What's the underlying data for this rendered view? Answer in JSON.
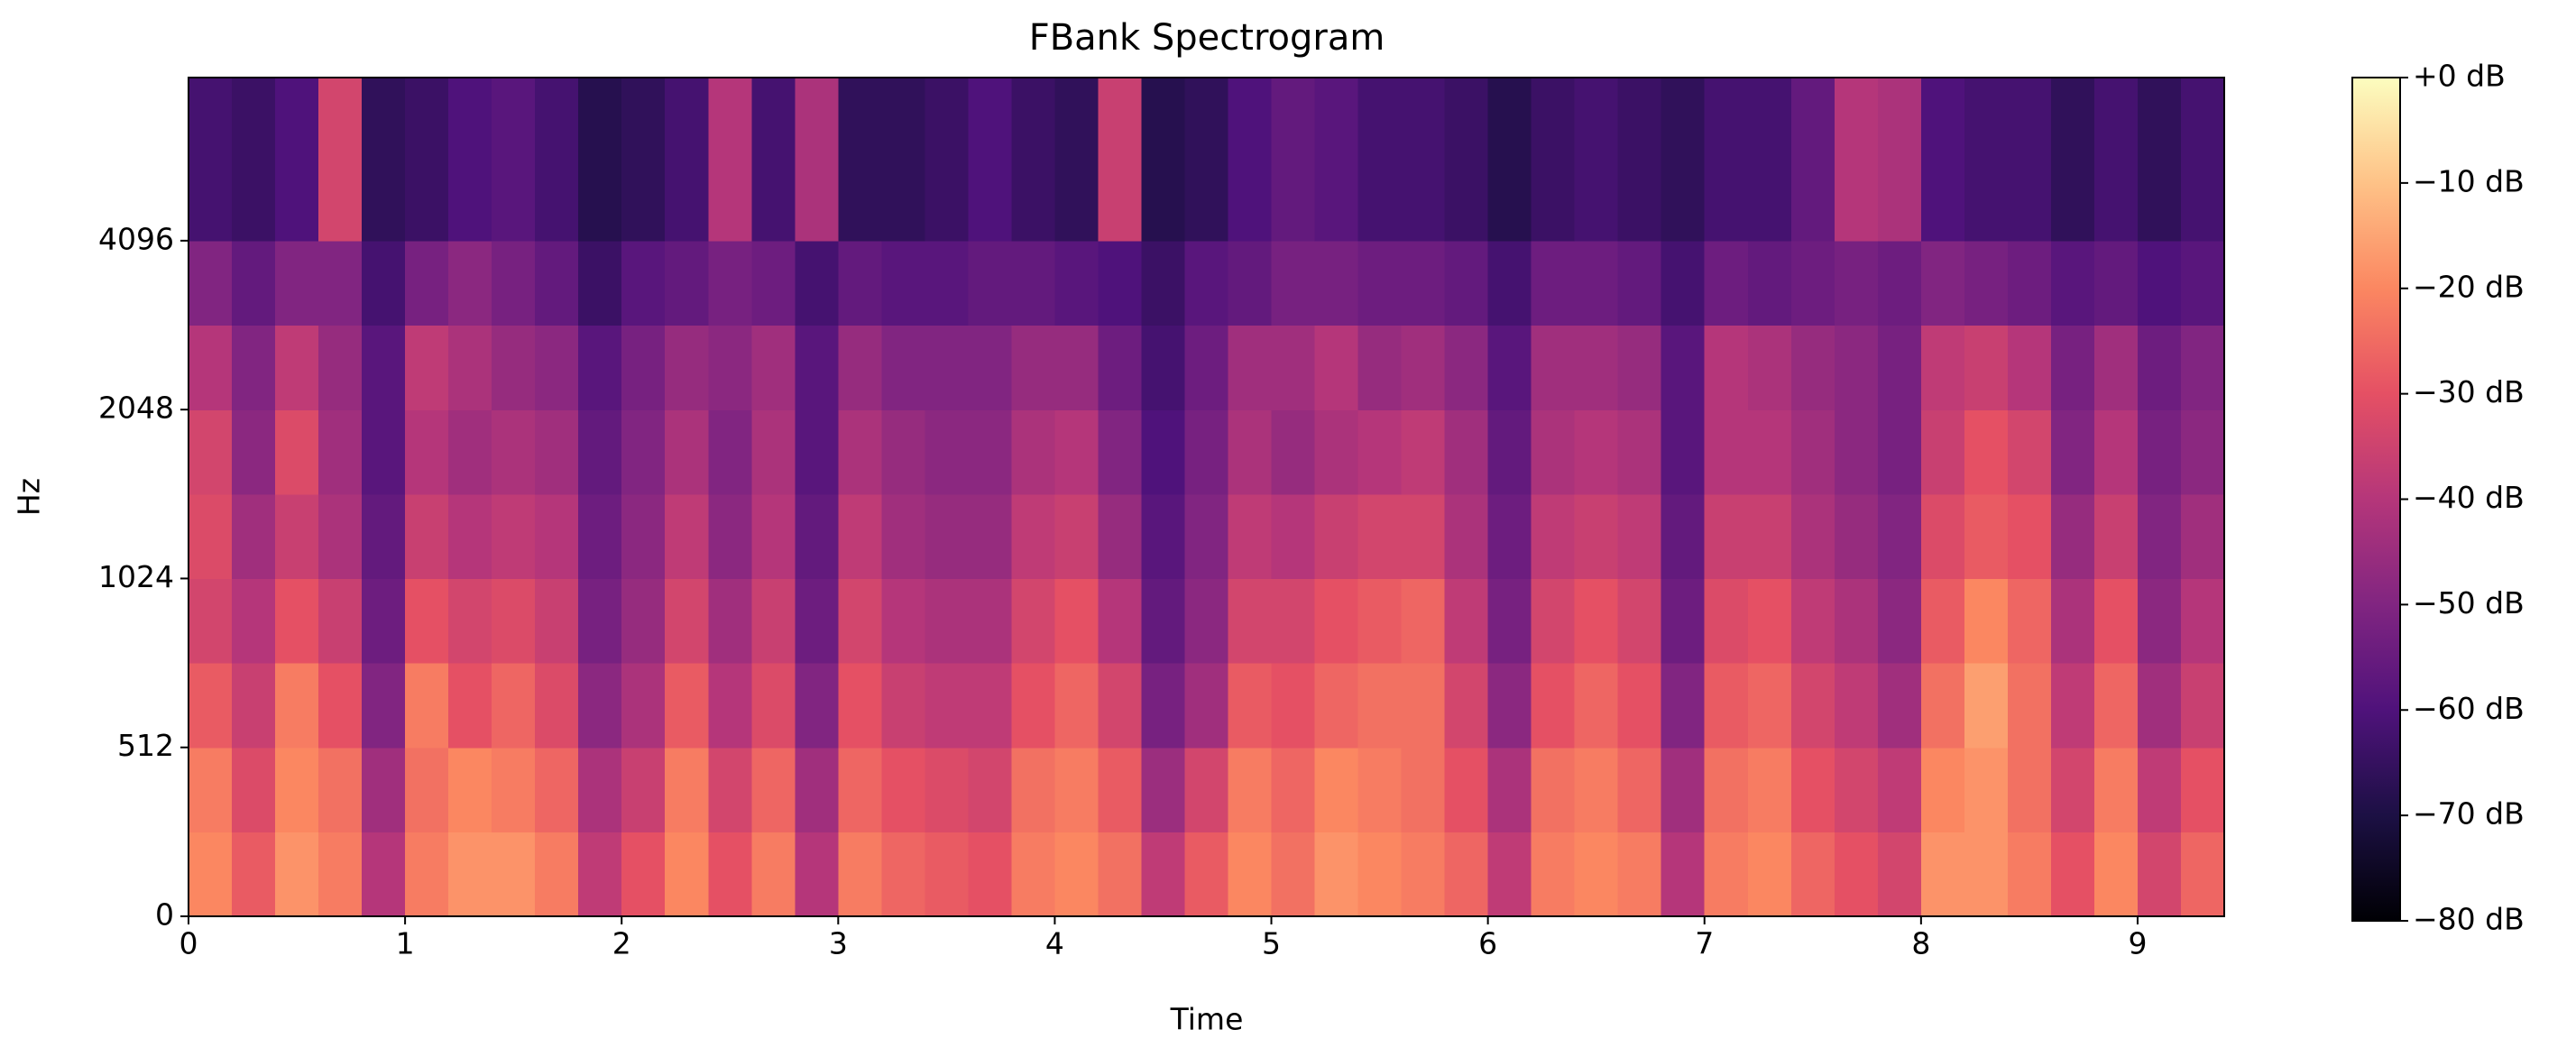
{
  "chart_data": {
    "type": "heatmap",
    "title": "FBank Spectrogram",
    "xlabel": "Time",
    "ylabel": "Hz",
    "xbins": [
      0,
      0.2,
      0.4,
      0.6,
      0.8,
      1,
      1.2,
      1.4,
      1.6,
      1.8,
      2,
      2.2,
      2.4,
      2.6,
      2.8,
      3,
      3.2,
      3.4,
      3.6,
      3.8,
      4,
      4.2,
      4.4,
      4.6,
      4.8,
      5,
      5.2,
      5.4,
      5.6,
      5.8,
      6,
      6.2,
      6.4,
      6.6,
      6.8,
      7,
      7.2,
      7.4,
      7.6,
      7.8,
      8,
      8.2,
      8.4,
      8.6,
      8.8,
      9,
      9.2,
      9.4
    ],
    "ybins": [
      0,
      256,
      512,
      724,
      1024,
      1448,
      2048,
      2896,
      4096,
      8000
    ],
    "z": [
      [
        -20,
        -28,
        -18,
        -22,
        -40,
        -22,
        -18,
        -18,
        -22,
        -38,
        -30,
        -20,
        -30,
        -22,
        -40,
        -22,
        -26,
        -28,
        -30,
        -22,
        -20,
        -24,
        -38,
        -28,
        -20,
        -24,
        -18,
        -20,
        -22,
        -26,
        -38,
        -22,
        -20,
        -22,
        -40,
        -22,
        -20,
        -26,
        -30,
        -34,
        -18,
        -18,
        -22,
        -30,
        -20,
        -34,
        -26
      ],
      [
        -22,
        -32,
        -20,
        -24,
        -44,
        -24,
        -20,
        -22,
        -26,
        -42,
        -36,
        -22,
        -34,
        -26,
        -44,
        -26,
        -30,
        -32,
        -34,
        -24,
        -22,
        -28,
        -45,
        -34,
        -22,
        -26,
        -20,
        -22,
        -24,
        -30,
        -42,
        -24,
        -22,
        -26,
        -44,
        -24,
        -22,
        -30,
        -34,
        -38,
        -20,
        -18,
        -24,
        -34,
        -22,
        -38,
        -30
      ],
      [
        -28,
        -36,
        -22,
        -30,
        -50,
        -22,
        -30,
        -26,
        -32,
        -48,
        -42,
        -28,
        -40,
        -32,
        -50,
        -30,
        -36,
        -38,
        -38,
        -30,
        -26,
        -34,
        -52,
        -44,
        -28,
        -30,
        -26,
        -24,
        -24,
        -34,
        -48,
        -30,
        -26,
        -30,
        -50,
        -28,
        -26,
        -34,
        -38,
        -44,
        -24,
        -16,
        -24,
        -38,
        -26,
        -44,
        -36
      ],
      [
        -34,
        -40,
        -30,
        -36,
        -54,
        -30,
        -34,
        -32,
        -36,
        -52,
        -46,
        -34,
        -44,
        -36,
        -54,
        -34,
        -40,
        -42,
        -42,
        -34,
        -30,
        -40,
        -56,
        -48,
        -34,
        -34,
        -30,
        -28,
        -26,
        -38,
        -52,
        -34,
        -30,
        -34,
        -54,
        -32,
        -30,
        -38,
        -42,
        -48,
        -28,
        -20,
        -26,
        -42,
        -30,
        -48,
        -40
      ],
      [
        -32,
        -44,
        -36,
        -42,
        -56,
        -36,
        -40,
        -38,
        -40,
        -54,
        -48,
        -38,
        -48,
        -40,
        -56,
        -38,
        -44,
        -46,
        -46,
        -38,
        -36,
        -46,
        -58,
        -50,
        -38,
        -40,
        -36,
        -34,
        -34,
        -42,
        -54,
        -38,
        -36,
        -38,
        -56,
        -36,
        -36,
        -42,
        -46,
        -50,
        -32,
        -28,
        -30,
        -46,
        -36,
        -50,
        -44
      ],
      [
        -34,
        -48,
        -32,
        -44,
        -58,
        -40,
        -44,
        -42,
        -44,
        -56,
        -50,
        -42,
        -50,
        -42,
        -58,
        -42,
        -46,
        -48,
        -48,
        -42,
        -40,
        -50,
        -60,
        -52,
        -42,
        -46,
        -42,
        -40,
        -38,
        -44,
        -56,
        -42,
        -40,
        -42,
        -58,
        -40,
        -40,
        -44,
        -48,
        -52,
        -36,
        -30,
        -34,
        -50,
        -40,
        -52,
        -48
      ],
      [
        -40,
        -50,
        -38,
        -46,
        -58,
        -38,
        -42,
        -46,
        -48,
        -58,
        -52,
        -46,
        -48,
        -44,
        -58,
        -46,
        -50,
        -50,
        -50,
        -46,
        -46,
        -54,
        -62,
        -54,
        -44,
        -44,
        -40,
        -46,
        -44,
        -48,
        -58,
        -44,
        -44,
        -46,
        -58,
        -40,
        -42,
        -46,
        -48,
        -52,
        -38,
        -36,
        -40,
        -52,
        -44,
        -54,
        -50
      ],
      [
        -50,
        -56,
        -50,
        -50,
        -62,
        -52,
        -48,
        -52,
        -56,
        -64,
        -58,
        -56,
        -52,
        -54,
        -62,
        -56,
        -58,
        -58,
        -56,
        -56,
        -58,
        -60,
        -64,
        -58,
        -56,
        -52,
        -52,
        -54,
        -54,
        -56,
        -62,
        -54,
        -54,
        -56,
        -62,
        -54,
        -56,
        -54,
        -52,
        -54,
        -50,
        -52,
        -54,
        -58,
        -56,
        -60,
        -58
      ],
      [
        -62,
        -64,
        -60,
        -34,
        -66,
        -64,
        -60,
        -58,
        -62,
        -68,
        -66,
        -62,
        -40,
        -62,
        -42,
        -66,
        -66,
        -64,
        -60,
        -64,
        -66,
        -36,
        -68,
        -66,
        -60,
        -56,
        -58,
        -62,
        -62,
        -64,
        -68,
        -64,
        -62,
        -64,
        -66,
        -62,
        -62,
        -56,
        -40,
        -42,
        -60,
        -62,
        -62,
        -66,
        -62,
        -66,
        -62
      ]
    ],
    "xlim": [
      0,
      9.4
    ],
    "ylim": [
      0,
      8000
    ],
    "yscale": "symlog",
    "xticks": [
      0,
      1,
      2,
      3,
      4,
      5,
      6,
      7,
      8,
      9
    ],
    "yticks": [
      0,
      512,
      1024,
      2048,
      4096
    ],
    "colormap": "magma",
    "clim": [
      -80,
      0
    ],
    "cticks": [
      {
        "value": 0,
        "label": "+0 dB"
      },
      {
        "value": -10,
        "label": "−10 dB"
      },
      {
        "value": -20,
        "label": "−20 dB"
      },
      {
        "value": -30,
        "label": "−30 dB"
      },
      {
        "value": -40,
        "label": "−40 dB"
      },
      {
        "value": -50,
        "label": "−50 dB"
      },
      {
        "value": -60,
        "label": "−60 dB"
      },
      {
        "value": -70,
        "label": "−70 dB"
      },
      {
        "value": -80,
        "label": "−80 dB"
      }
    ]
  }
}
